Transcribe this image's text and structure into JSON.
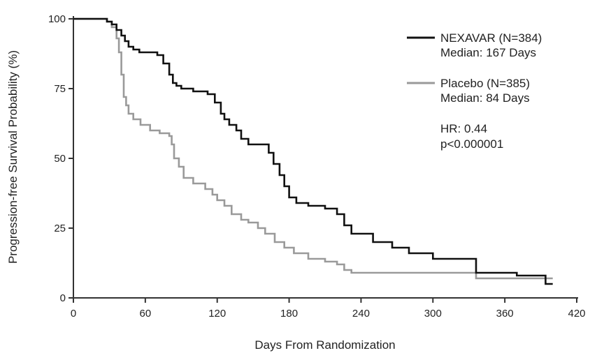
{
  "chart_data": {
    "type": "line",
    "subtype": "kaplan-meier step curve",
    "title": "",
    "xlabel": "Days From Randomization",
    "ylabel": "Progression-free Survival Probability (%)",
    "xlim": [
      0,
      420
    ],
    "ylim": [
      0,
      100
    ],
    "x_ticks": [
      "0",
      "60",
      "120",
      "180",
      "240",
      "300",
      "360",
      "420"
    ],
    "y_ticks": [
      "0",
      "25",
      "50",
      "75",
      "100"
    ],
    "grid": false,
    "legend_position": "top-right",
    "series": [
      {
        "name": "NEXAVAR (N=384)",
        "median_label": "Median: 167 Days",
        "color": "#111111",
        "x": [
          0,
          22,
          28,
          32,
          36,
          40,
          43,
          46,
          50,
          55,
          70,
          75,
          80,
          83,
          86,
          90,
          100,
          112,
          118,
          123,
          126,
          130,
          136,
          140,
          146,
          160,
          163,
          167,
          172,
          176,
          180,
          186,
          196,
          210,
          220,
          226,
          232,
          250,
          266,
          280,
          300,
          320,
          336,
          348,
          370,
          390,
          394,
          400
        ],
        "y": [
          100,
          100,
          99,
          98,
          96,
          94,
          92,
          90,
          89,
          88,
          87,
          84,
          80,
          77,
          76,
          75,
          74,
          73,
          70,
          66,
          64,
          62,
          60,
          57,
          55,
          55,
          52,
          48,
          44,
          40,
          36,
          34,
          33,
          32,
          30,
          26,
          23,
          20,
          18,
          16,
          14,
          14,
          9,
          9,
          8,
          8,
          5,
          5
        ]
      },
      {
        "name": "Placebo (N=385)",
        "median_label": "Median: 84 Days",
        "color": "#9a9a9a",
        "x": [
          0,
          22,
          28,
          32,
          36,
          38,
          40,
          42,
          44,
          46,
          50,
          56,
          64,
          72,
          80,
          82,
          84,
          88,
          92,
          100,
          110,
          116,
          120,
          126,
          132,
          140,
          146,
          154,
          160,
          168,
          176,
          184,
          196,
          210,
          220,
          226,
          232,
          240,
          260,
          280,
          300,
          320,
          336,
          360,
          380,
          400
        ],
        "y": [
          100,
          100,
          99,
          97,
          93,
          88,
          80,
          72,
          69,
          66,
          64,
          62,
          60,
          59,
          58,
          55,
          50,
          47,
          43,
          41,
          39,
          37,
          35,
          33,
          30,
          28,
          27,
          25,
          23,
          20,
          18,
          16,
          14,
          13,
          12,
          10,
          9,
          9,
          9,
          9,
          9,
          9,
          7,
          7,
          7,
          7
        ]
      }
    ],
    "annotations": [
      "HR: 0.44",
      "p<0.000001"
    ]
  }
}
